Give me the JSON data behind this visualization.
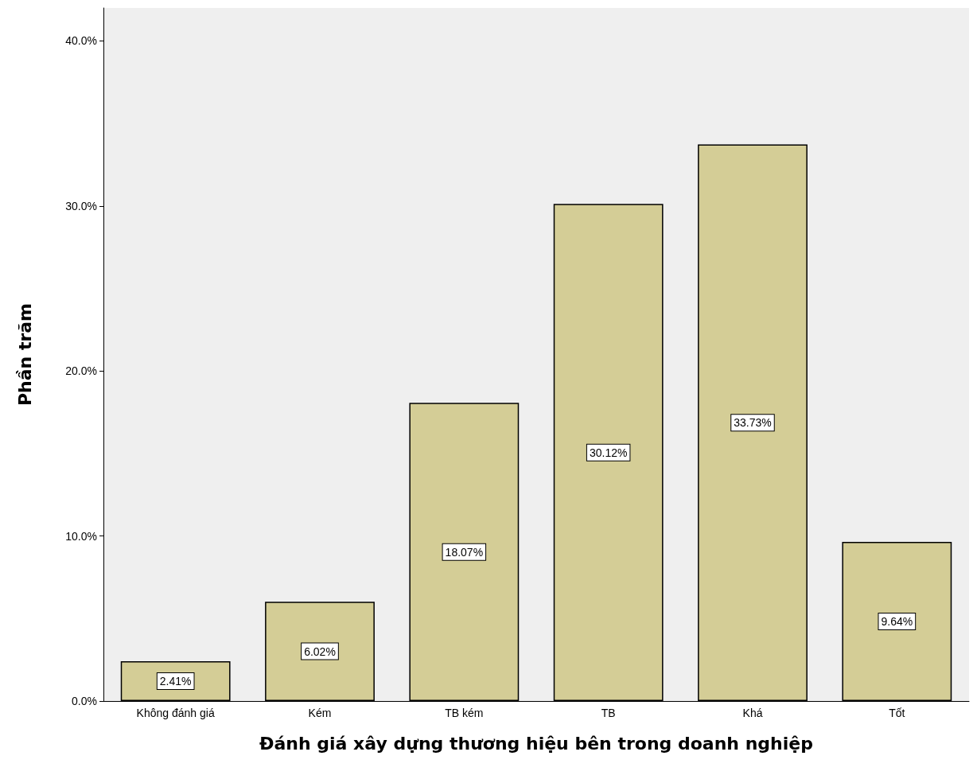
{
  "chart_data": {
    "type": "bar",
    "xlabel": "Đánh giá xây dựng thương hiệu bên trong doanh nghiệp",
    "ylabel": "Phần trăm",
    "categories": [
      "Không đánh giá",
      "Kém",
      "TB kém",
      "TB",
      "Khá",
      "Tốt"
    ],
    "values": [
      2.41,
      6.02,
      18.07,
      30.12,
      33.73,
      9.64
    ],
    "value_labels": [
      "2.41%",
      "6.02%",
      "18.07%",
      "30.12%",
      "33.73%",
      "9.64%"
    ],
    "color": "#d4cd96",
    "ylim": [
      0,
      42
    ],
    "yticks": [
      {
        "value": 0,
        "label": "0.0%"
      },
      {
        "value": 10,
        "label": "10.0%"
      },
      {
        "value": 20,
        "label": "20.0%"
      },
      {
        "value": 30,
        "label": "30.0%"
      },
      {
        "value": 40,
        "label": "40.0%"
      }
    ],
    "grid": false
  }
}
